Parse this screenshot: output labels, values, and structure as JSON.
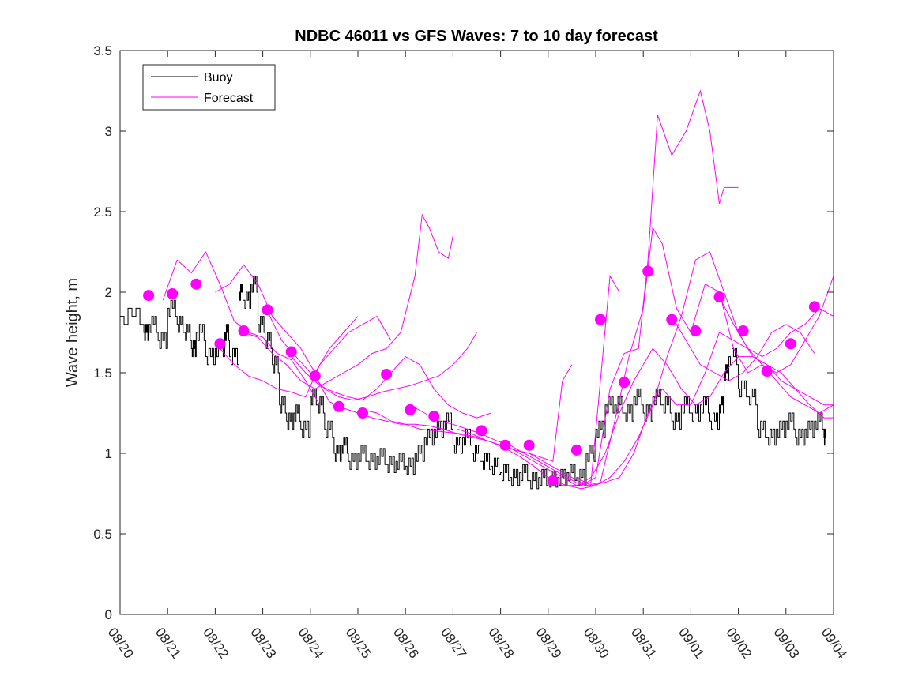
{
  "chart_data": {
    "type": "line",
    "title": "NDBC 46011 vs GFS Waves: 7 to 10 day forecast",
    "xlabel": "",
    "ylabel": "Wave height, m",
    "x_unit": "days since 08/20",
    "xlim": [
      0,
      15
    ],
    "ylim": [
      0,
      3.5
    ],
    "yticks": [
      0,
      0.5,
      1,
      1.5,
      2,
      2.5,
      3,
      3.5
    ],
    "ytick_labels": [
      "0",
      "0.5",
      "1",
      "1.5",
      "2",
      "2.5",
      "3",
      "3.5"
    ],
    "xticks": [
      0,
      1,
      2,
      3,
      4,
      5,
      6,
      7,
      8,
      9,
      10,
      11,
      12,
      13,
      14,
      15
    ],
    "xtick_labels": [
      "08/20",
      "08/21",
      "08/22",
      "08/23",
      "08/24",
      "08/25",
      "08/26",
      "08/27",
      "08/28",
      "08/29",
      "08/30",
      "08/31",
      "09/01",
      "09/02",
      "09/03",
      "09/04"
    ],
    "grid": false,
    "legend": {
      "position": "top-left",
      "entries": [
        {
          "label": "Buoy",
          "color": "#000000"
        },
        {
          "label": "Forecast",
          "color": "#ff00ff"
        }
      ]
    },
    "series": [
      {
        "name": "Buoy",
        "style": "step",
        "color": "#000000",
        "x": [
          0,
          0.5,
          0.6,
          0.8,
          1.0,
          1.2,
          1.35,
          1.5,
          1.6,
          1.8,
          2.0,
          2.2,
          2.3,
          2.5,
          2.6,
          2.75,
          2.9,
          3.05,
          3.2,
          3.35,
          3.5,
          3.65,
          3.8,
          4.0,
          4.15,
          4.3,
          4.5,
          4.65,
          4.8,
          5.0,
          5.2,
          5.4,
          5.6,
          5.8,
          6.0,
          6.2,
          6.4,
          6.6,
          6.8,
          7.0,
          7.2,
          7.4,
          7.6,
          7.8,
          8.0,
          8.2,
          8.4,
          8.6,
          8.8,
          9.0,
          9.2,
          9.4,
          9.6,
          9.8,
          10.0,
          10.2,
          10.4,
          10.6,
          10.8,
          11.0,
          11.2,
          11.4,
          11.6,
          11.8,
          12.0,
          12.2,
          12.4,
          12.6,
          12.7,
          12.8,
          13.0,
          13.2,
          13.4,
          13.6,
          13.8,
          14.0,
          14.2,
          14.4,
          14.6,
          14.8
        ],
        "values": [
          1.85,
          1.75,
          1.8,
          1.7,
          1.9,
          1.8,
          1.75,
          1.65,
          1.75,
          1.6,
          1.65,
          1.75,
          1.6,
          2.0,
          1.95,
          2.05,
          1.8,
          1.7,
          1.55,
          1.3,
          1.2,
          1.25,
          1.15,
          1.35,
          1.3,
          1.15,
          1.0,
          1.05,
          0.95,
          1.0,
          0.95,
          0.98,
          0.93,
          0.95,
          0.92,
          1.0,
          1.1,
          1.15,
          1.2,
          1.05,
          1.1,
          1.0,
          0.95,
          0.92,
          0.88,
          0.85,
          0.88,
          0.83,
          0.85,
          0.84,
          0.85,
          0.88,
          0.85,
          1.0,
          1.15,
          1.3,
          1.3,
          1.25,
          1.35,
          1.25,
          1.35,
          1.3,
          1.2,
          1.3,
          1.25,
          1.3,
          1.2,
          1.3,
          1.5,
          1.6,
          1.4,
          1.35,
          1.15,
          1.1,
          1.15,
          1.2,
          1.1,
          1.15,
          1.2,
          1.1
        ]
      },
      {
        "name": "Forecast 1",
        "color": "#ff00ff",
        "x": [
          0.9,
          1.2,
          1.5,
          1.8,
          2.1,
          2.4,
          2.7,
          3.0,
          3.3,
          3.6,
          3.9,
          4.2
        ],
        "values": [
          1.95,
          2.2,
          2.12,
          2.25,
          2.05,
          1.82,
          1.75,
          1.72,
          1.62,
          1.58,
          1.45,
          1.3
        ]
      },
      {
        "name": "Forecast 2",
        "color": "#ff00ff",
        "x": [
          2.0,
          2.3,
          2.6,
          2.9,
          3.2,
          3.5,
          3.8,
          4.1,
          4.4,
          4.7,
          5.0
        ],
        "values": [
          2.0,
          2.05,
          2.17,
          2.05,
          1.85,
          1.75,
          1.65,
          1.5,
          1.65,
          1.75,
          1.85
        ]
      },
      {
        "name": "Forecast 3",
        "color": "#ff00ff",
        "x": [
          2.1,
          2.4,
          2.7,
          3.0,
          3.3,
          3.6,
          3.9,
          4.2,
          4.5,
          4.8,
          5.1,
          5.4,
          5.7
        ],
        "values": [
          1.65,
          1.55,
          1.48,
          1.45,
          1.4,
          1.38,
          1.35,
          1.55,
          1.65,
          1.75,
          1.8,
          1.85,
          1.7
        ]
      },
      {
        "name": "Forecast 4",
        "color": "#ff00ff",
        "x": [
          2.6,
          2.9,
          3.2,
          3.5,
          3.8,
          4.1,
          4.4,
          4.7,
          5.0,
          5.3,
          5.6,
          5.9,
          6.2,
          6.35,
          6.5,
          6.7,
          6.9,
          7.0
        ],
        "values": [
          1.75,
          1.72,
          1.62,
          1.55,
          1.45,
          1.4,
          1.45,
          1.5,
          1.55,
          1.62,
          1.65,
          1.75,
          2.1,
          2.48,
          2.4,
          2.25,
          2.21,
          2.35
        ]
      },
      {
        "name": "Forecast 5",
        "color": "#ff00ff",
        "x": [
          3.1,
          3.4,
          3.7,
          4.0,
          4.3,
          4.6,
          4.9,
          5.2,
          5.5,
          5.8,
          6.1,
          6.4,
          6.7,
          7.0,
          7.3,
          7.5
        ],
        "values": [
          1.88,
          1.7,
          1.6,
          1.5,
          1.4,
          1.35,
          1.33,
          1.35,
          1.38,
          1.4,
          1.42,
          1.45,
          1.48,
          1.55,
          1.65,
          1.75
        ]
      },
      {
        "name": "Forecast 6",
        "color": "#ff00ff",
        "x": [
          3.6,
          3.9,
          4.2,
          4.5,
          4.8,
          5.1,
          5.4,
          5.7,
          6.0,
          6.3,
          6.6,
          6.9,
          7.2,
          7.5,
          7.8
        ],
        "values": [
          1.6,
          1.5,
          1.42,
          1.38,
          1.35,
          1.33,
          1.4,
          1.5,
          1.6,
          1.55,
          1.4,
          1.3,
          1.25,
          1.22,
          1.25
        ]
      },
      {
        "name": "Forecast 7",
        "color": "#ff00ff",
        "x": [
          4.1,
          4.4,
          4.7,
          5.0,
          5.3,
          5.6,
          5.9,
          6.2,
          6.5,
          6.8,
          7.1,
          7.4,
          7.7,
          8.0,
          8.3,
          8.6,
          8.9,
          9.1,
          9.3,
          9.5
        ],
        "values": [
          1.48,
          1.32,
          1.28,
          1.25,
          1.22,
          1.2,
          1.18,
          1.18,
          1.17,
          1.15,
          1.12,
          1.1,
          1.08,
          1.05,
          1.02,
          1.0,
          0.97,
          0.95,
          1.45,
          1.55
        ]
      },
      {
        "name": "Forecast 8",
        "color": "#ff00ff",
        "x": [
          5.1,
          5.4,
          5.7,
          6.0,
          6.3,
          6.6,
          6.9,
          7.2,
          7.5,
          7.8,
          8.1,
          8.4,
          8.7,
          9.0,
          9.3,
          9.6,
          9.9,
          10.1,
          10.3,
          10.5
        ],
        "values": [
          1.27,
          1.25,
          1.2,
          1.18,
          1.15,
          1.14,
          1.13,
          1.12,
          1.1,
          1.07,
          1.03,
          0.98,
          0.92,
          0.85,
          0.8,
          0.8,
          0.82,
          1.45,
          2.1,
          2.0
        ]
      },
      {
        "name": "Forecast 9",
        "color": "#ff00ff",
        "x": [
          6.1,
          6.4,
          6.7,
          7.0,
          7.3,
          7.6,
          7.9,
          8.2,
          8.5,
          8.8,
          9.1,
          9.4,
          9.7,
          10.0,
          10.3,
          10.6,
          10.9,
          11.1,
          11.3,
          11.6,
          11.9,
          12.2,
          12.4,
          12.6,
          12.7,
          12.8,
          13.0
        ],
        "values": [
          1.3,
          1.25,
          1.2,
          1.18,
          1.15,
          1.12,
          1.08,
          1.05,
          1.0,
          0.95,
          0.9,
          0.85,
          0.8,
          0.85,
          1.4,
          1.62,
          1.65,
          2.2,
          3.1,
          2.85,
          3.0,
          3.25,
          3.0,
          2.55,
          2.65,
          2.65,
          2.65
        ]
      },
      {
        "name": "Forecast 10",
        "color": "#ff00ff",
        "x": [
          7.1,
          7.4,
          7.7,
          8.0,
          8.3,
          8.6,
          8.9,
          9.2,
          9.5,
          9.8,
          10.1,
          10.4,
          10.7,
          11.0,
          11.2,
          11.4,
          11.7,
          12.0,
          12.3,
          12.6,
          12.9,
          13.2,
          13.5,
          13.8,
          14.1,
          14.4,
          14.7,
          15.0
        ],
        "values": [
          1.15,
          1.12,
          1.08,
          1.05,
          1.02,
          1.0,
          0.95,
          0.9,
          0.85,
          0.8,
          0.82,
          1.2,
          1.6,
          1.9,
          2.4,
          2.3,
          1.9,
          1.75,
          2.05,
          2.0,
          1.65,
          1.5,
          1.55,
          1.45,
          1.35,
          1.3,
          1.25,
          1.3
        ]
      },
      {
        "name": "Forecast 11",
        "color": "#ff00ff",
        "x": [
          8.1,
          8.4,
          8.7,
          9.0,
          9.3,
          9.6,
          9.9,
          10.2,
          10.5,
          10.8,
          11.0,
          11.2,
          11.5,
          11.8,
          12.1,
          12.4,
          12.7,
          13.0,
          13.3,
          13.6,
          13.9,
          14.2,
          14.5,
          14.8,
          15.0
        ],
        "values": [
          1.05,
          1.0,
          0.95,
          0.9,
          0.85,
          0.8,
          0.85,
          1.0,
          1.25,
          1.45,
          1.55,
          1.65,
          1.55,
          1.4,
          1.3,
          1.35,
          1.5,
          1.6,
          1.6,
          1.55,
          1.45,
          1.4,
          1.35,
          1.3,
          1.3
        ]
      },
      {
        "name": "Forecast 12",
        "color": "#ff00ff",
        "x": [
          9.1,
          9.4,
          9.7,
          10.0,
          10.3,
          10.6,
          10.9,
          11.2,
          11.5,
          11.8,
          12.1,
          12.4,
          12.7,
          13.0,
          13.3,
          13.6,
          13.9,
          14.2,
          14.5,
          14.8,
          15.0
        ],
        "values": [
          0.83,
          0.8,
          0.78,
          0.8,
          0.85,
          0.95,
          1.1,
          1.3,
          1.6,
          1.85,
          2.2,
          2.25,
          2.0,
          1.75,
          1.6,
          1.55,
          1.5,
          1.4,
          1.3,
          1.22,
          1.22
        ]
      },
      {
        "name": "Forecast 13",
        "color": "#ff00ff",
        "x": [
          9.6,
          9.9,
          10.2,
          10.5,
          10.8,
          11.1,
          11.4,
          11.7,
          12.0,
          12.3,
          12.6,
          12.9,
          13.2,
          13.5,
          13.8,
          14.1,
          14.4,
          14.7,
          15.0
        ],
        "values": [
          0.85,
          0.8,
          0.82,
          0.85,
          1.0,
          1.25,
          1.4,
          1.3,
          1.3,
          1.5,
          1.75,
          1.7,
          1.65,
          1.55,
          1.5,
          1.55,
          1.7,
          1.85,
          2.1
        ]
      },
      {
        "name": "Forecast 14",
        "color": "#ff00ff",
        "x": [
          11.6,
          11.9,
          12.2,
          12.5,
          12.8,
          13.1,
          13.4,
          13.7,
          14.0,
          14.3,
          14.6
        ],
        "values": [
          1.85,
          1.7,
          1.55,
          1.5,
          1.45,
          1.5,
          1.6,
          1.75,
          1.8,
          1.75,
          1.62
        ]
      },
      {
        "name": "Forecast 15",
        "color": "#ff00ff",
        "x": [
          12.6,
          12.9,
          13.2,
          13.5,
          13.8,
          14.1,
          14.4,
          14.7,
          15.0
        ],
        "values": [
          1.97,
          1.8,
          1.65,
          1.6,
          1.65,
          1.75,
          1.8,
          1.9,
          1.85
        ]
      }
    ],
    "markers": {
      "name": "Forecast start points",
      "color": "#ff00ff",
      "x": [
        0.6,
        1.1,
        1.6,
        2.1,
        2.6,
        3.1,
        3.6,
        4.1,
        4.6,
        5.1,
        5.6,
        6.1,
        6.6,
        7.6,
        8.1,
        8.6,
        9.1,
        9.6,
        10.1,
        10.6,
        11.1,
        11.6,
        12.1,
        12.6,
        13.1,
        13.6,
        14.1,
        14.6
      ],
      "values": [
        1.98,
        1.99,
        2.05,
        1.68,
        1.76,
        1.89,
        1.63,
        1.48,
        1.29,
        1.25,
        1.49,
        1.27,
        1.23,
        1.14,
        1.05,
        1.05,
        0.83,
        1.02,
        1.83,
        1.44,
        2.13,
        1.83,
        1.76,
        1.97,
        1.76,
        1.51,
        1.68,
        1.91
      ]
    }
  }
}
